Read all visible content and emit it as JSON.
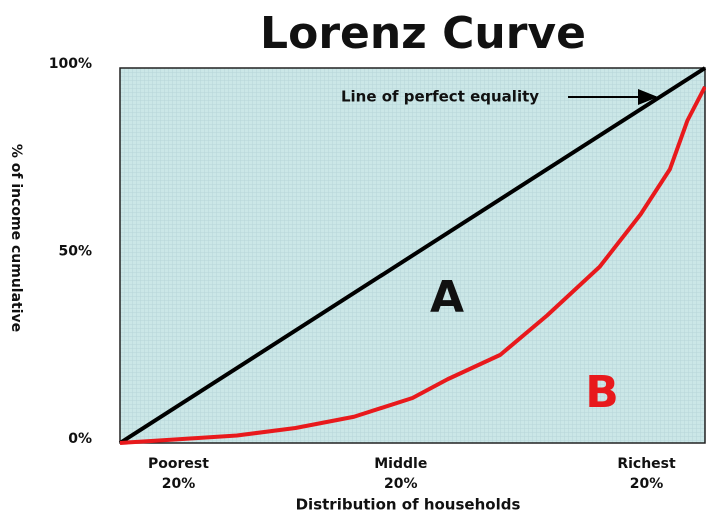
{
  "chart_data": {
    "type": "line",
    "title": "Lorenz Curve",
    "y_label": "% of income cumulative",
    "x_label": "Distribution of households",
    "xlim": [
      0,
      100
    ],
    "ylim": [
      0,
      100
    ],
    "yticks": [
      {
        "value": 0,
        "label": "0%"
      },
      {
        "value": 50,
        "label": "50%"
      },
      {
        "value": 100,
        "label": "100%"
      }
    ],
    "xticks": [
      {
        "value": 10,
        "label": "Poorest\n20%"
      },
      {
        "value": 48,
        "label": "Middle\n20%"
      },
      {
        "value": 90,
        "label": "Richest\n20%"
      }
    ],
    "series": [
      {
        "name": "Line of perfect equality",
        "color": "#000000",
        "x": [
          0,
          100
        ],
        "values": [
          0,
          100
        ]
      },
      {
        "color": "#e8191c",
        "x": [
          0,
          5,
          20,
          30,
          40,
          50,
          56,
          65,
          73,
          82,
          89,
          94,
          97,
          100
        ],
        "values": [
          0,
          0.5,
          2,
          4,
          7,
          12,
          17,
          23.5,
          34,
          47,
          61,
          73,
          86,
          95
        ]
      }
    ],
    "annotations": [
      "A",
      "B"
    ]
  }
}
